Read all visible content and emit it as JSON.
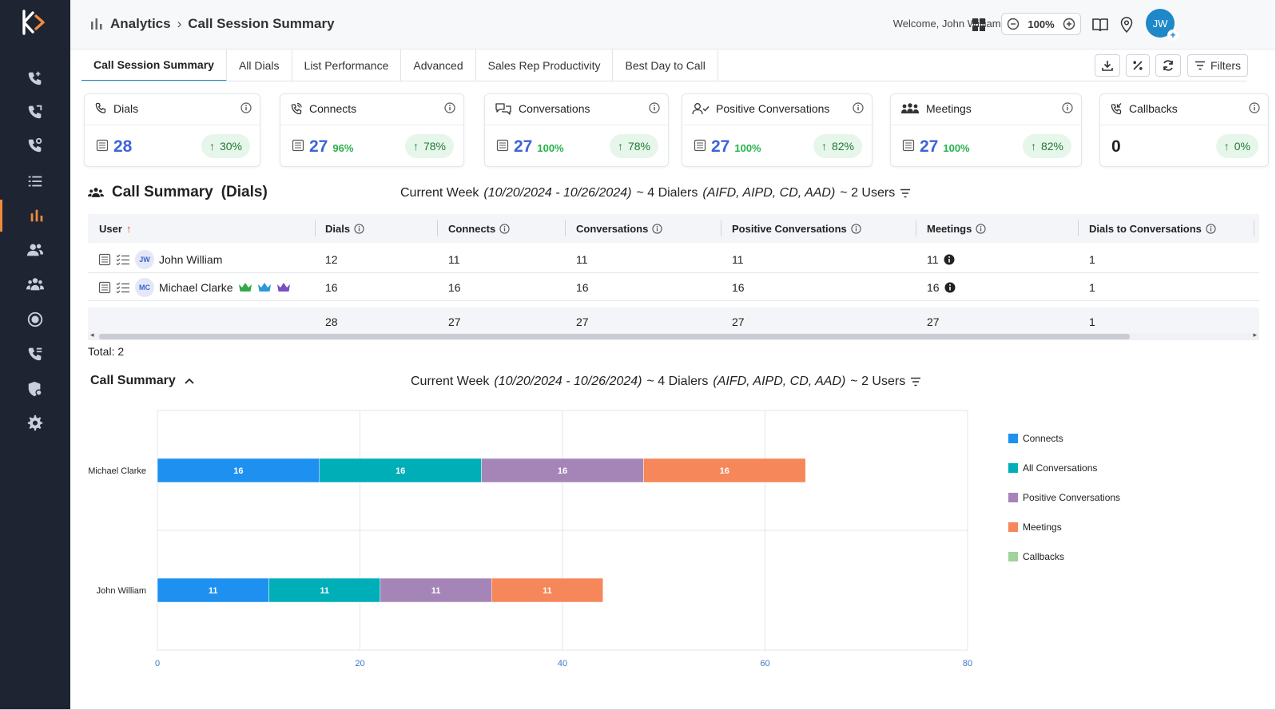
{
  "header": {
    "breadcrumb_root": "Analytics",
    "breadcrumb_page": "Call Session Summary",
    "welcome": "Welcome, John William (SmartTech)",
    "zoom": "100%",
    "avatar_initials": "JW"
  },
  "tabs": [
    {
      "label": "Call Session Summary",
      "active": true
    },
    {
      "label": "All Dials"
    },
    {
      "label": "List Performance"
    },
    {
      "label": "Advanced"
    },
    {
      "label": "Sales Rep Productivity"
    },
    {
      "label": "Best Day to Call"
    }
  ],
  "toolbar": {
    "filters_label": "Filters"
  },
  "kpis": [
    {
      "label": "Dials",
      "value": "28",
      "pct": "",
      "change": "30%",
      "icon": "phone-icon"
    },
    {
      "label": "Connects",
      "value": "27",
      "pct": "96%",
      "change": "78%",
      "icon": "phone-connect-icon"
    },
    {
      "label": "Conversations",
      "value": "27",
      "pct": "100%",
      "change": "78%",
      "icon": "chat-icon"
    },
    {
      "label": "Positive Conversations",
      "value": "27",
      "pct": "100%",
      "change": "82%",
      "icon": "user-check-icon"
    },
    {
      "label": "Meetings",
      "value": "27",
      "pct": "100%",
      "change": "82%",
      "icon": "meeting-icon"
    },
    {
      "label": "Callbacks",
      "value": "0",
      "pct": "",
      "change": "0%",
      "icon": "callback-icon"
    }
  ],
  "summary": {
    "title": "Call Summary",
    "title_suffix": "(Dials)",
    "period_prefix": "Current Week",
    "period_range": "(10/20/2024 - 10/26/2024)",
    "dialers_text": "~ 4 Dialers",
    "dialers_list": "(AIFD, AIPD, CD, AAD)",
    "users_text": "~ 2 Users"
  },
  "table": {
    "columns": [
      "User",
      "Dials",
      "Connects",
      "Conversations",
      "Positive Conversations",
      "Meetings",
      "Dials to Conversations"
    ],
    "rows": [
      {
        "initials": "JW",
        "user": "John William",
        "dials": "12",
        "connects": "11",
        "conversations": "11",
        "positive": "11",
        "meetings": "11",
        "ratio": "1"
      },
      {
        "initials": "MC",
        "user": "Michael Clarke",
        "dials": "16",
        "connects": "16",
        "conversations": "16",
        "positive": "16",
        "meetings": "16",
        "ratio": "1"
      }
    ],
    "totals": {
      "dials": "28",
      "connects": "27",
      "conversations": "27",
      "positive": "27",
      "meetings": "27",
      "ratio": "1"
    },
    "total_label": "Total: 2"
  },
  "chart_section": {
    "title": "Call Summary",
    "period_prefix": "Current Week",
    "period_range": "(10/20/2024 - 10/26/2024)",
    "dialers_text": "~ 4 Dialers",
    "dialers_list": "(AIFD, AIPD, CD, AAD)",
    "users_text": "~ 2 Users"
  },
  "chart_data": {
    "type": "bar",
    "orientation": "horizontal",
    "stacked": true,
    "categories": [
      "Michael Clarke",
      "John William"
    ],
    "series": [
      {
        "name": "Connects",
        "values": [
          16,
          11
        ],
        "color": "#1e90f0"
      },
      {
        "name": "All Conversations",
        "values": [
          16,
          11
        ],
        "color": "#00aeb8"
      },
      {
        "name": "Positive Conversations",
        "values": [
          16,
          11
        ],
        "color": "#a585b8"
      },
      {
        "name": "Meetings",
        "values": [
          16,
          11
        ],
        "color": "#f5875a"
      },
      {
        "name": "Callbacks",
        "values": [
          0,
          0
        ],
        "color": "#9fd39b"
      }
    ],
    "xlim": [
      0,
      80
    ],
    "xticks": [
      "0",
      "20",
      "40",
      "60",
      "80"
    ],
    "grid": true,
    "legend": "right"
  }
}
